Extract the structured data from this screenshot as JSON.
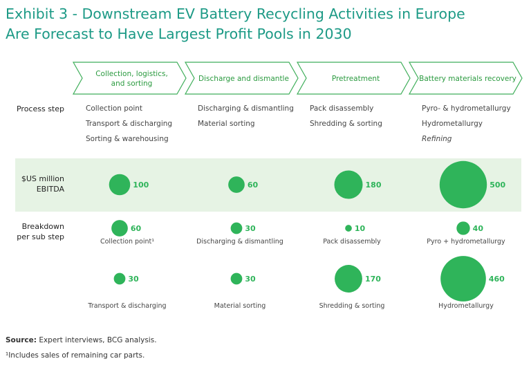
{
  "title": {
    "line1": "Exhibit 3 - Downstream EV Battery Recycling Activities in Europe",
    "line2": "Are Forecast to Have Largest Profit Pools in 2030"
  },
  "colors": {
    "title": "#1d9a86",
    "bubble": "#2fb45a",
    "band": "#e6f3e4",
    "chevron_stroke": "#3fae5a",
    "chevron_text": "#2a9a3f"
  },
  "chart_data": {
    "type": "bubble",
    "stages": [
      {
        "label_lines": [
          "Collection, logistics,",
          "and sorting"
        ]
      },
      {
        "label_lines": [
          "Discharge and dismantle"
        ]
      },
      {
        "label_lines": [
          "Pretreatment"
        ]
      },
      {
        "label_lines": [
          "Battery materials recovery"
        ]
      }
    ],
    "row_labels": {
      "process": [
        "Process step"
      ],
      "ebitda": [
        "$US million",
        "EBITDA"
      ],
      "breakdown": [
        "Breakdown",
        "per sub step"
      ]
    },
    "process_steps": [
      [
        "Collection point",
        "Transport & discharging",
        "Sorting & warehousing"
      ],
      [
        "Discharging & dismantling",
        "Material sorting"
      ],
      [
        "Pack disassembly",
        "Shredding & sorting"
      ],
      [
        "Pyro- & hydrometallurgy",
        "Hydrometallurgy",
        "Refining"
      ]
    ],
    "italic_steps": [
      "Refining"
    ],
    "ebitda_values": [
      100,
      60,
      180,
      500
    ],
    "breakdown": [
      [
        {
          "value": 60,
          "label": "Collection point¹"
        },
        {
          "value": 30,
          "label": "Transport & discharging"
        }
      ],
      [
        {
          "value": 30,
          "label": "Discharging & dismantling"
        },
        {
          "value": 30,
          "label": "Material sorting"
        }
      ],
      [
        {
          "value": 10,
          "label": "Pack disassembly"
        },
        {
          "value": 170,
          "label": "Shredding & sorting"
        }
      ],
      [
        {
          "value": 40,
          "label": "Pyro + hydrometallurgy"
        },
        {
          "value": 460,
          "label": "Hydrometallurgy"
        }
      ]
    ]
  },
  "footer": {
    "source_label": "Source:",
    "source_text": " Expert interviews, BCG analysis.",
    "note": "¹Includes sales of remaining car parts."
  }
}
